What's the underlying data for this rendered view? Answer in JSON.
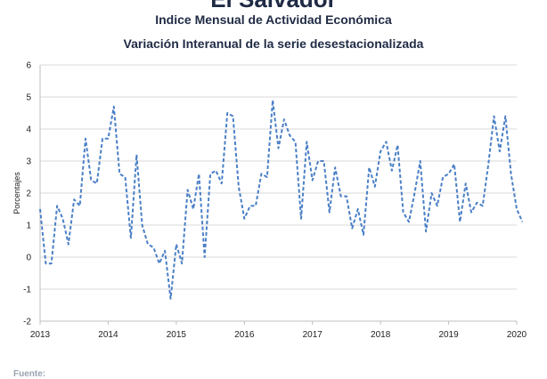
{
  "header": {
    "title": "El Salvador",
    "subtitle1": "Indice Mensual de  Actividad Económica",
    "subtitle2": "Variación Interanual de la serie desestacionalizada"
  },
  "footer": {
    "source_label": "Fuente:"
  },
  "chart_data": {
    "type": "line",
    "title": "Indice Mensual de  Actividad Económica",
    "subtitle": "Variación Interanual de la serie desestacionalizada",
    "xlabel": "",
    "ylabel": "Porcentajes",
    "xlim": [
      2013,
      2020
    ],
    "ylim": [
      -2,
      6
    ],
    "xticks": [
      "2013",
      "2014",
      "2015",
      "2016",
      "2017",
      "2018",
      "2019",
      "2020"
    ],
    "yticks": [
      "-2",
      "-1",
      "0",
      "1",
      "2",
      "3",
      "4",
      "5",
      "6"
    ],
    "grid": "horizontal",
    "line_color": "#4a7fc6",
    "line_style": "dashed",
    "series": [
      {
        "name": "",
        "x": [
          "2013-01",
          "2013-02",
          "2013-03",
          "2013-04",
          "2013-05",
          "2013-06",
          "2013-07",
          "2013-08",
          "2013-09",
          "2013-10",
          "2013-11",
          "2013-12",
          "2014-01",
          "2014-02",
          "2014-03",
          "2014-04",
          "2014-05",
          "2014-06",
          "2014-07",
          "2014-08",
          "2014-09",
          "2014-10",
          "2014-11",
          "2014-12",
          "2015-01",
          "2015-02",
          "2015-03",
          "2015-04",
          "2015-05",
          "2015-06",
          "2015-07",
          "2015-08",
          "2015-09",
          "2015-10",
          "2015-11",
          "2015-12",
          "2016-01",
          "2016-02",
          "2016-03",
          "2016-04",
          "2016-05",
          "2016-06",
          "2016-07",
          "2016-08",
          "2016-09",
          "2016-10",
          "2016-11",
          "2016-12",
          "2017-01",
          "2017-02",
          "2017-03",
          "2017-04",
          "2017-05",
          "2017-06",
          "2017-07",
          "2017-08",
          "2017-09",
          "2017-10",
          "2017-11",
          "2017-12",
          "2018-01",
          "2018-02",
          "2018-03",
          "2018-04",
          "2018-05",
          "2018-06",
          "2018-07",
          "2018-08",
          "2018-09",
          "2018-10",
          "2018-11",
          "2018-12",
          "2019-01",
          "2019-02",
          "2019-03",
          "2019-04",
          "2019-05",
          "2019-06",
          "2019-07",
          "2019-08",
          "2019-09",
          "2019-10",
          "2019-11",
          "2019-12",
          "2020-01",
          "2020-02"
        ],
        "values": [
          1.5,
          -0.2,
          -0.2,
          1.6,
          1.2,
          0.4,
          1.8,
          1.6,
          3.7,
          2.4,
          2.3,
          3.7,
          3.7,
          4.7,
          2.6,
          2.5,
          0.6,
          3.2,
          1.0,
          0.4,
          0.3,
          -0.2,
          0.2,
          -1.3,
          0.4,
          -0.2,
          2.1,
          1.5,
          2.6,
          0.0,
          2.6,
          2.7,
          2.3,
          4.5,
          4.4,
          2.2,
          1.2,
          1.6,
          1.6,
          2.6,
          2.5,
          4.9,
          3.4,
          4.3,
          3.8,
          3.6,
          1.2,
          3.6,
          2.4,
          3.0,
          3.0,
          1.4,
          2.8,
          1.9,
          1.9,
          0.9,
          1.5,
          0.7,
          2.8,
          2.2,
          3.3,
          3.6,
          2.7,
          3.5,
          1.4,
          1.1,
          2.0,
          3.0,
          0.8,
          2.0,
          1.6,
          2.5,
          2.6,
          2.9,
          1.1,
          2.3,
          1.4,
          1.7,
          1.6,
          2.9,
          4.4,
          3.3,
          4.4,
          2.6,
          1.5,
          1.1
        ]
      }
    ]
  }
}
